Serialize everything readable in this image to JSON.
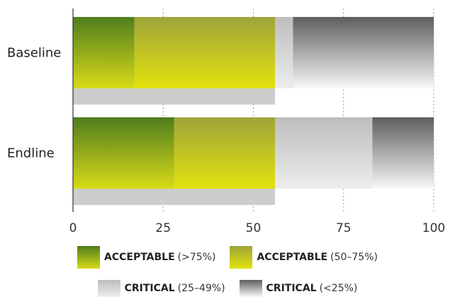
{
  "chart_data": {
    "type": "bar",
    "orientation": "horizontal",
    "stacked": true,
    "categories": [
      "Baseline",
      "Endline"
    ],
    "series": [
      {
        "name": "ACCEPTABLE (>75%)",
        "values": [
          17,
          28
        ],
        "color_top": "#4f7d1c",
        "color_bottom": "#d8da18"
      },
      {
        "name": "ACCEPTABLE (50–75%)",
        "values": [
          39,
          28
        ],
        "color_top": "#9ea43a",
        "color_bottom": "#e2e20e"
      },
      {
        "name": "CRITICAL (25–49%)",
        "values": [
          5,
          27
        ],
        "color_top": "#bdbdbd",
        "color_bottom": "#ededed"
      },
      {
        "name": "CRITICAL (<25%)",
        "values": [
          39,
          17
        ],
        "color_top": "#5e5e5e",
        "color_bottom": "#f8f8f8"
      }
    ],
    "secondary_bars": {
      "values": [
        56,
        56
      ],
      "color": "#cdcdcd"
    },
    "xlim": [
      0,
      100
    ],
    "xticks": [
      "0",
      "25",
      "50",
      "75",
      "100"
    ],
    "grid": "dotted vertical",
    "legend_position": "bottom"
  },
  "legend": [
    {
      "bold": "ACCEPTABLE",
      "rest": "(>75%)"
    },
    {
      "bold": "ACCEPTABLE",
      "rest": "(50–75%)"
    },
    {
      "bold": "CRITICAL",
      "rest": "(25–49%)"
    },
    {
      "bold": "CRITICAL",
      "rest": "(<25%)"
    }
  ]
}
